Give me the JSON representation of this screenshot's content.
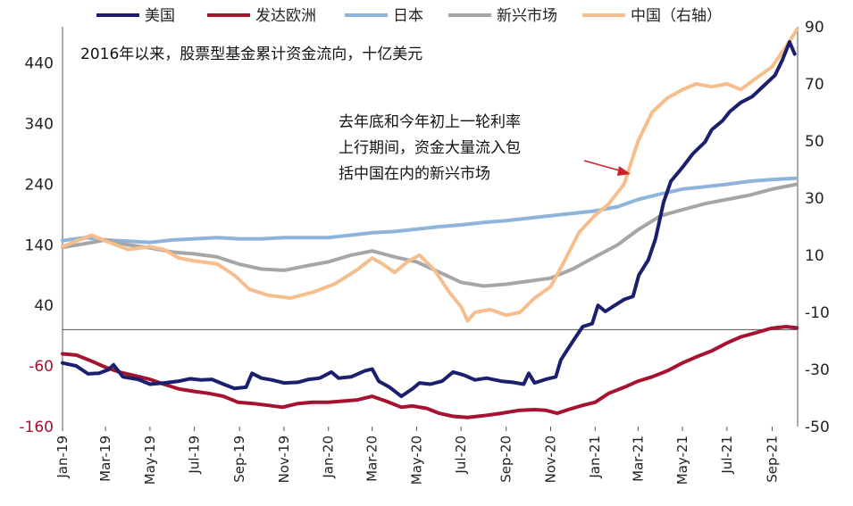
{
  "chart_data": {
    "type": "line",
    "title": "2016年以来，股票型基金累计资金流向，十亿美元",
    "annotation": [
      "去年底和今年初上一轮利率",
      "上行期间，资金大量流入包",
      "括中国在内的新兴市场"
    ],
    "x_ticks": [
      "Jan-19",
      "Mar-19",
      "May-19",
      "Jul-19",
      "Sep-19",
      "Nov-19",
      "Jan-20",
      "Mar-20",
      "May-20",
      "Jul-20",
      "Sep-20",
      "Nov-20",
      "Jan-21",
      "Mar-21",
      "May-21",
      "Jul-21",
      "Sep-21"
    ],
    "left_axis": {
      "ticks": [
        440,
        340,
        240,
        140,
        40,
        -60,
        -160
      ],
      "ylim": [
        -160,
        500
      ]
    },
    "right_axis": {
      "ticks": [
        90,
        70,
        50,
        30,
        10,
        -10,
        -30,
        -50
      ],
      "ylim": [
        -50,
        90
      ]
    },
    "colors": {
      "us": "#1a1f6e",
      "europe": "#a6122f",
      "japan": "#8eb4dc",
      "em": "#a6a6a6",
      "china": "#f6be8c",
      "annotation_arrow": "#d0202a",
      "axis": "#555555"
    },
    "series": [
      {
        "name": "美国",
        "key": "us",
        "axis": "left",
        "points": [
          [
            "2019-01-01",
            -55
          ],
          [
            "2019-01-20",
            -60
          ],
          [
            "2019-02-05",
            -73
          ],
          [
            "2019-02-20",
            -72
          ],
          [
            "2019-03-05",
            -66
          ],
          [
            "2019-03-12",
            -58
          ],
          [
            "2019-03-25",
            -78
          ],
          [
            "2019-04-15",
            -82
          ],
          [
            "2019-05-01",
            -90
          ],
          [
            "2019-05-20",
            -88
          ],
          [
            "2019-06-10",
            -85
          ],
          [
            "2019-06-25",
            -81
          ],
          [
            "2019-07-10",
            -83
          ],
          [
            "2019-07-25",
            -82
          ],
          [
            "2019-08-10",
            -90
          ],
          [
            "2019-08-25",
            -97
          ],
          [
            "2019-09-10",
            -95
          ],
          [
            "2019-09-18",
            -72
          ],
          [
            "2019-10-01",
            -80
          ],
          [
            "2019-10-15",
            -83
          ],
          [
            "2019-11-01",
            -88
          ],
          [
            "2019-11-20",
            -87
          ],
          [
            "2019-12-05",
            -82
          ],
          [
            "2019-12-20",
            -80
          ],
          [
            "2020-01-05",
            -70
          ],
          [
            "2020-01-15",
            -80
          ],
          [
            "2020-02-01",
            -78
          ],
          [
            "2020-02-20",
            -68
          ],
          [
            "2020-03-01",
            -65
          ],
          [
            "2020-03-10",
            -85
          ],
          [
            "2020-03-25",
            -95
          ],
          [
            "2020-04-10",
            -110
          ],
          [
            "2020-04-25",
            -98
          ],
          [
            "2020-05-05",
            -88
          ],
          [
            "2020-05-20",
            -90
          ],
          [
            "2020-06-05",
            -85
          ],
          [
            "2020-06-20",
            -70
          ],
          [
            "2020-07-05",
            -75
          ],
          [
            "2020-07-20",
            -83
          ],
          [
            "2020-08-05",
            -80
          ],
          [
            "2020-08-25",
            -85
          ],
          [
            "2020-09-10",
            -87
          ],
          [
            "2020-09-25",
            -90
          ],
          [
            "2020-10-02",
            -72
          ],
          [
            "2020-10-10",
            -88
          ],
          [
            "2020-10-25",
            -82
          ],
          [
            "2020-11-08",
            -78
          ],
          [
            "2020-11-15",
            -50
          ],
          [
            "2020-12-01",
            -20
          ],
          [
            "2020-12-15",
            5
          ],
          [
            "2020-12-28",
            10
          ],
          [
            "2021-01-05",
            40
          ],
          [
            "2021-01-15",
            30
          ],
          [
            "2021-01-28",
            40
          ],
          [
            "2021-02-10",
            50
          ],
          [
            "2021-02-22",
            55
          ],
          [
            "2021-03-02",
            90
          ],
          [
            "2021-03-15",
            115
          ],
          [
            "2021-03-25",
            150
          ],
          [
            "2021-04-05",
            210
          ],
          [
            "2021-04-15",
            245
          ],
          [
            "2021-05-01",
            268
          ],
          [
            "2021-05-15",
            290
          ],
          [
            "2021-06-01",
            310
          ],
          [
            "2021-06-10",
            330
          ],
          [
            "2021-06-25",
            345
          ],
          [
            "2021-07-05",
            360
          ],
          [
            "2021-07-20",
            375
          ],
          [
            "2021-08-05",
            385
          ],
          [
            "2021-08-20",
            402
          ],
          [
            "2021-09-05",
            420
          ],
          [
            "2021-09-15",
            445
          ],
          [
            "2021-09-25",
            475
          ],
          [
            "2021-10-02",
            455
          ]
        ]
      },
      {
        "name": "发达欧洲",
        "key": "europe",
        "axis": "left",
        "points": [
          [
            "2019-01-01",
            -40
          ],
          [
            "2019-01-20",
            -42
          ],
          [
            "2019-02-10",
            -52
          ],
          [
            "2019-03-01",
            -62
          ],
          [
            "2019-03-20",
            -70
          ],
          [
            "2019-04-10",
            -76
          ],
          [
            "2019-05-01",
            -82
          ],
          [
            "2019-05-20",
            -90
          ],
          [
            "2019-06-10",
            -98
          ],
          [
            "2019-07-01",
            -102
          ],
          [
            "2019-07-20",
            -105
          ],
          [
            "2019-08-10",
            -110
          ],
          [
            "2019-08-30",
            -120
          ],
          [
            "2019-09-20",
            -122
          ],
          [
            "2019-10-10",
            -125
          ],
          [
            "2019-10-30",
            -128
          ],
          [
            "2019-11-20",
            -122
          ],
          [
            "2019-12-10",
            -120
          ],
          [
            "2020-01-01",
            -120
          ],
          [
            "2020-01-20",
            -118
          ],
          [
            "2020-02-10",
            -116
          ],
          [
            "2020-03-01",
            -110
          ],
          [
            "2020-03-20",
            -118
          ],
          [
            "2020-04-10",
            -128
          ],
          [
            "2020-04-25",
            -126
          ],
          [
            "2020-05-15",
            -130
          ],
          [
            "2020-06-01",
            -138
          ],
          [
            "2020-06-20",
            -143
          ],
          [
            "2020-07-10",
            -145
          ],
          [
            "2020-08-01",
            -142
          ],
          [
            "2020-08-25",
            -138
          ],
          [
            "2020-09-20",
            -133
          ],
          [
            "2020-10-10",
            -132
          ],
          [
            "2020-10-25",
            -133
          ],
          [
            "2020-11-10",
            -138
          ],
          [
            "2020-11-25",
            -132
          ],
          [
            "2020-12-15",
            -125
          ],
          [
            "2021-01-01",
            -120
          ],
          [
            "2021-01-20",
            -105
          ],
          [
            "2021-02-10",
            -95
          ],
          [
            "2021-03-01",
            -85
          ],
          [
            "2021-03-20",
            -78
          ],
          [
            "2021-04-10",
            -68
          ],
          [
            "2021-05-01",
            -55
          ],
          [
            "2021-05-20",
            -45
          ],
          [
            "2021-06-10",
            -35
          ],
          [
            "2021-07-01",
            -22
          ],
          [
            "2021-07-20",
            -12
          ],
          [
            "2021-08-10",
            -5
          ],
          [
            "2021-08-30",
            2
          ],
          [
            "2021-09-20",
            5
          ],
          [
            "2021-10-05",
            3
          ]
        ]
      },
      {
        "name": "日本",
        "key": "japan",
        "axis": "left",
        "points": [
          [
            "2019-01-01",
            147
          ],
          [
            "2019-02-01",
            152
          ],
          [
            "2019-03-01",
            148
          ],
          [
            "2019-04-01",
            146
          ],
          [
            "2019-05-01",
            144
          ],
          [
            "2019-06-01",
            148
          ],
          [
            "2019-07-01",
            150
          ],
          [
            "2019-08-01",
            152
          ],
          [
            "2019-09-01",
            150
          ],
          [
            "2019-10-01",
            150
          ],
          [
            "2019-11-01",
            152
          ],
          [
            "2019-12-01",
            152
          ],
          [
            "2020-01-01",
            152
          ],
          [
            "2020-02-01",
            156
          ],
          [
            "2020-03-01",
            160
          ],
          [
            "2020-04-01",
            162
          ],
          [
            "2020-05-01",
            166
          ],
          [
            "2020-06-01",
            170
          ],
          [
            "2020-07-01",
            173
          ],
          [
            "2020-08-01",
            177
          ],
          [
            "2020-09-01",
            180
          ],
          [
            "2020-10-01",
            184
          ],
          [
            "2020-11-01",
            188
          ],
          [
            "2020-12-01",
            192
          ],
          [
            "2021-01-01",
            196
          ],
          [
            "2021-02-01",
            203
          ],
          [
            "2021-03-01",
            215
          ],
          [
            "2021-04-01",
            224
          ],
          [
            "2021-05-01",
            232
          ],
          [
            "2021-06-01",
            236
          ],
          [
            "2021-07-01",
            240
          ],
          [
            "2021-08-01",
            245
          ],
          [
            "2021-09-01",
            248
          ],
          [
            "2021-10-05",
            250
          ]
        ]
      },
      {
        "name": "新兴市场",
        "key": "em",
        "axis": "left",
        "points": [
          [
            "2019-01-01",
            136
          ],
          [
            "2019-02-01",
            142
          ],
          [
            "2019-03-01",
            148
          ],
          [
            "2019-04-01",
            140
          ],
          [
            "2019-05-01",
            135
          ],
          [
            "2019-06-01",
            128
          ],
          [
            "2019-07-01",
            125
          ],
          [
            "2019-08-01",
            120
          ],
          [
            "2019-09-01",
            108
          ],
          [
            "2019-10-01",
            100
          ],
          [
            "2019-11-01",
            98
          ],
          [
            "2019-12-01",
            105
          ],
          [
            "2020-01-01",
            112
          ],
          [
            "2020-02-01",
            123
          ],
          [
            "2020-03-01",
            130
          ],
          [
            "2020-04-01",
            120
          ],
          [
            "2020-05-01",
            112
          ],
          [
            "2020-06-01",
            95
          ],
          [
            "2020-07-01",
            78
          ],
          [
            "2020-08-01",
            72
          ],
          [
            "2020-09-01",
            75
          ],
          [
            "2020-10-01",
            80
          ],
          [
            "2020-11-01",
            85
          ],
          [
            "2020-12-01",
            100
          ],
          [
            "2021-01-01",
            120
          ],
          [
            "2021-02-01",
            140
          ],
          [
            "2021-03-01",
            165
          ],
          [
            "2021-04-01",
            188
          ],
          [
            "2021-05-01",
            198
          ],
          [
            "2021-06-01",
            208
          ],
          [
            "2021-07-01",
            215
          ],
          [
            "2021-08-01",
            222
          ],
          [
            "2021-09-01",
            232
          ],
          [
            "2021-10-05",
            240
          ]
        ]
      },
      {
        "name": "中国（右轴）",
        "key": "china",
        "axis": "right",
        "points": [
          [
            "2019-01-01",
            13
          ],
          [
            "2019-01-20",
            15
          ],
          [
            "2019-02-10",
            17
          ],
          [
            "2019-03-01",
            15
          ],
          [
            "2019-04-01",
            12
          ],
          [
            "2019-05-01",
            13
          ],
          [
            "2019-05-20",
            12
          ],
          [
            "2019-06-10",
            9
          ],
          [
            "2019-07-01",
            8
          ],
          [
            "2019-08-01",
            7
          ],
          [
            "2019-08-25",
            3
          ],
          [
            "2019-09-15",
            -2
          ],
          [
            "2019-10-10",
            -4
          ],
          [
            "2019-11-10",
            -5
          ],
          [
            "2019-12-10",
            -3
          ],
          [
            "2020-01-10",
            0
          ],
          [
            "2020-02-10",
            5
          ],
          [
            "2020-03-01",
            9
          ],
          [
            "2020-03-15",
            7
          ],
          [
            "2020-04-01",
            4
          ],
          [
            "2020-04-20",
            8
          ],
          [
            "2020-05-05",
            10
          ],
          [
            "2020-05-25",
            5
          ],
          [
            "2020-06-15",
            -3
          ],
          [
            "2020-07-01",
            -8
          ],
          [
            "2020-07-10",
            -13
          ],
          [
            "2020-07-20",
            -10
          ],
          [
            "2020-08-10",
            -9
          ],
          [
            "2020-09-01",
            -11
          ],
          [
            "2020-09-20",
            -10
          ],
          [
            "2020-10-10",
            -5
          ],
          [
            "2020-11-01",
            -1
          ],
          [
            "2020-11-20",
            8
          ],
          [
            "2020-12-10",
            18
          ],
          [
            "2021-01-01",
            24
          ],
          [
            "2021-01-20",
            28
          ],
          [
            "2021-02-10",
            35
          ],
          [
            "2021-03-01",
            50
          ],
          [
            "2021-03-20",
            60
          ],
          [
            "2021-04-10",
            65
          ],
          [
            "2021-05-01",
            68
          ],
          [
            "2021-05-20",
            70
          ],
          [
            "2021-06-10",
            69
          ],
          [
            "2021-07-01",
            70
          ],
          [
            "2021-07-20",
            68
          ],
          [
            "2021-08-10",
            72
          ],
          [
            "2021-09-01",
            76
          ],
          [
            "2021-09-20",
            83
          ],
          [
            "2021-10-05",
            89
          ]
        ]
      }
    ]
  }
}
